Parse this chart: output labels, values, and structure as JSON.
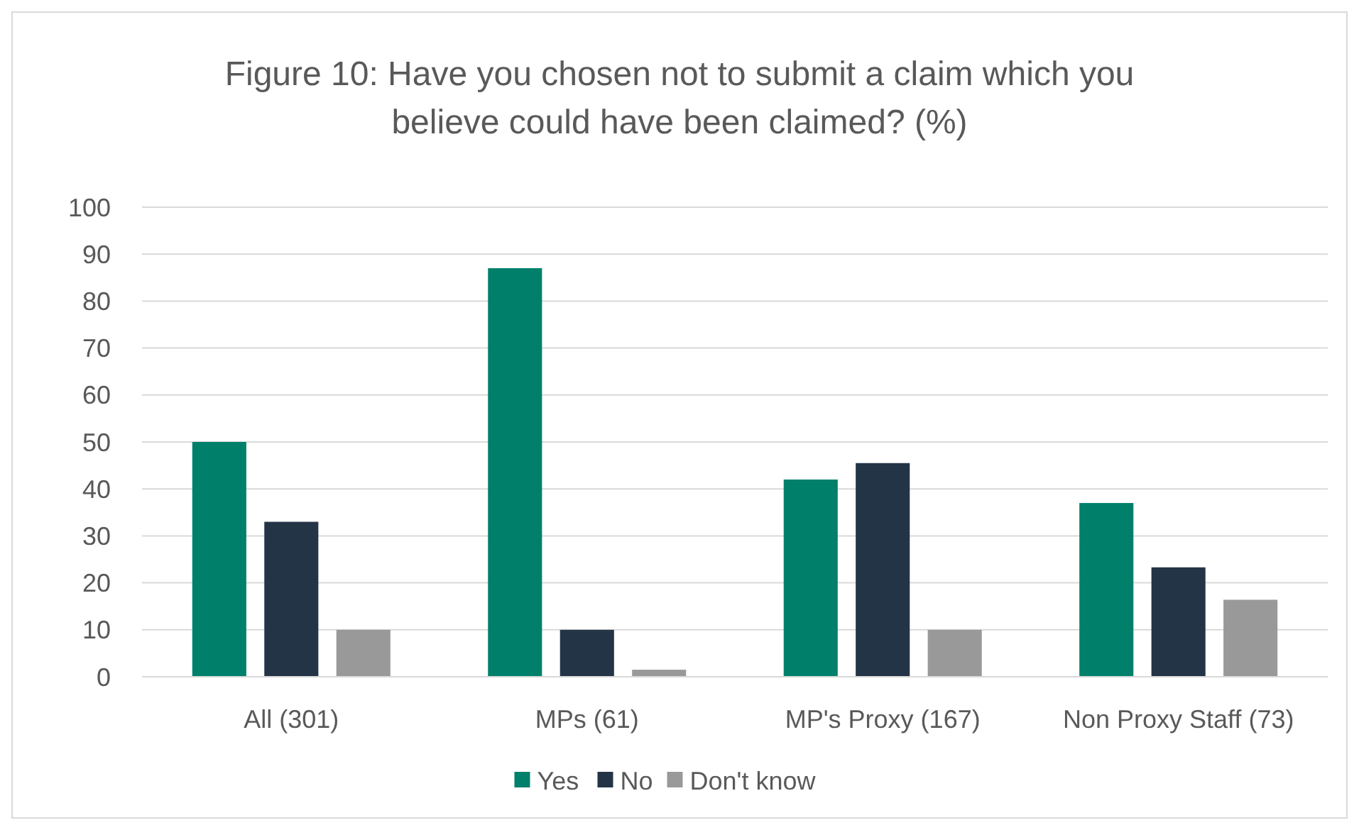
{
  "chart_data": {
    "type": "bar",
    "title": "Figure 10: Have you chosen not to submit a claim which you believe could have been claimed? (%)",
    "categories": [
      "All (301)",
      "MPs (61)",
      "MP's Proxy (167)",
      "Non Proxy Staff (73)"
    ],
    "series": [
      {
        "name": "Yes",
        "color": "#00806a",
        "values": [
          50,
          87,
          42,
          37
        ]
      },
      {
        "name": "No",
        "color": "#243447",
        "values": [
          33,
          10,
          45.5,
          23.3
        ]
      },
      {
        "name": "Don't know",
        "color": "#999999",
        "values": [
          10,
          1.5,
          10,
          16.4
        ]
      }
    ],
    "ylim": [
      0,
      100
    ],
    "yticks": [
      0,
      10,
      20,
      30,
      40,
      50,
      60,
      70,
      80,
      90,
      100
    ],
    "grid": "y",
    "legend": "bottom"
  }
}
